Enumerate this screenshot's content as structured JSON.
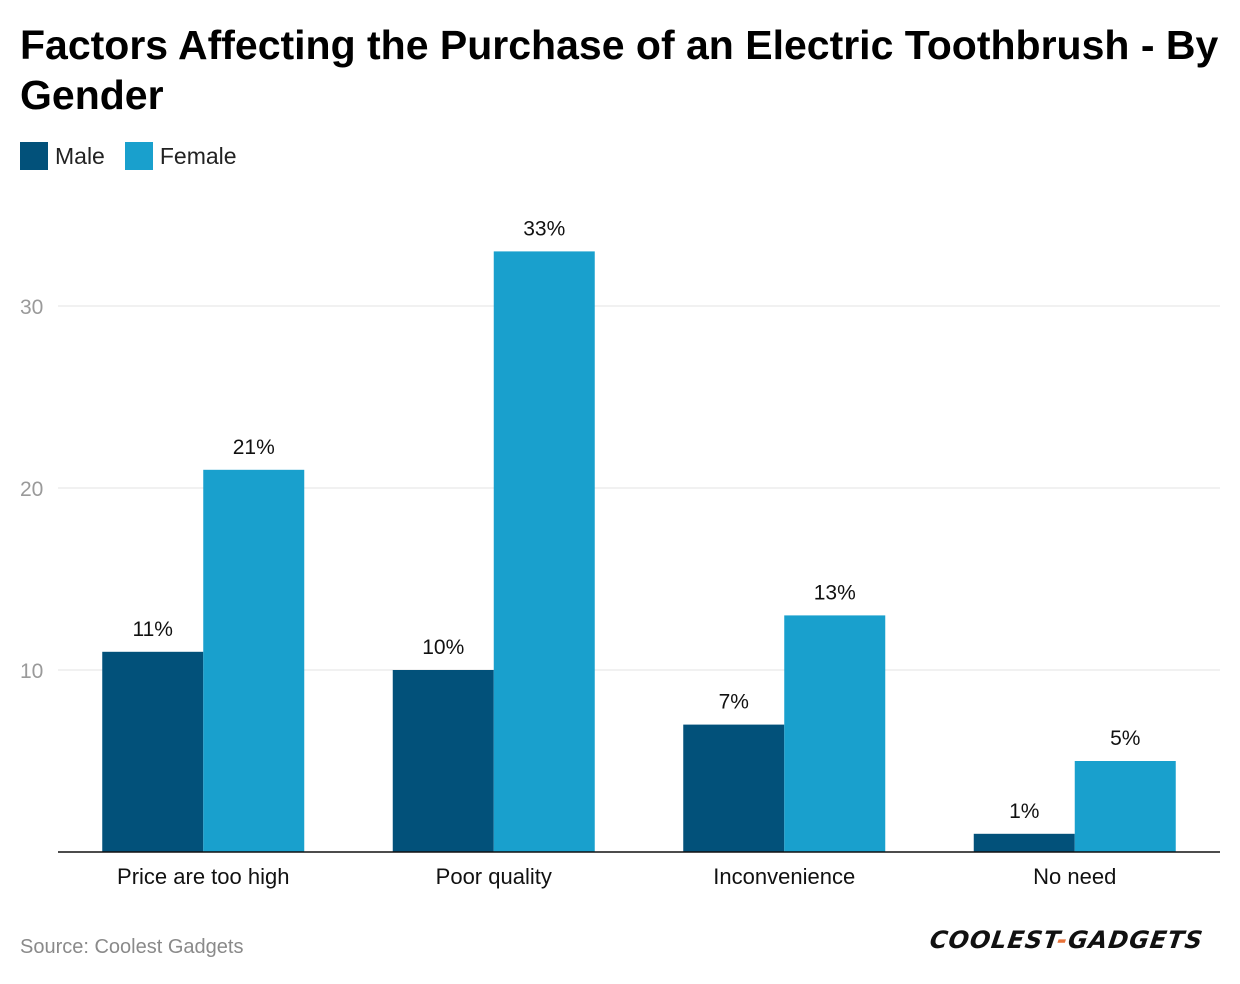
{
  "title": "Factors Affecting the Purchase of an Electric Toothbrush - By Gender",
  "legend": [
    {
      "label": "Male",
      "color": "#02517a"
    },
    {
      "label": "Female",
      "color": "#19a0cd"
    }
  ],
  "source": "Source: Coolest Gadgets",
  "logo": {
    "left": "COOLEST",
    "dash": "-",
    "right": "GADGETS"
  },
  "chart_data": {
    "type": "bar",
    "title": "Factors Affecting the Purchase of an Electric Toothbrush - By Gender",
    "categories": [
      "Price are too high",
      "Poor quality",
      "Inconvenience",
      "No need"
    ],
    "series": [
      {
        "name": "Male",
        "color": "#02517a",
        "values": [
          11,
          10,
          7,
          1
        ],
        "labels": [
          "11%",
          "10%",
          "7%",
          "1%"
        ]
      },
      {
        "name": "Female",
        "color": "#19a0cd",
        "values": [
          21,
          33,
          13,
          5
        ],
        "labels": [
          "21%",
          "33%",
          "13%",
          "5%"
        ]
      }
    ],
    "yticks": [
      10,
      20,
      30
    ],
    "ylim": [
      0,
      36
    ],
    "xlabel": "",
    "ylabel": "",
    "grid": true,
    "legend_position": "top-left"
  }
}
